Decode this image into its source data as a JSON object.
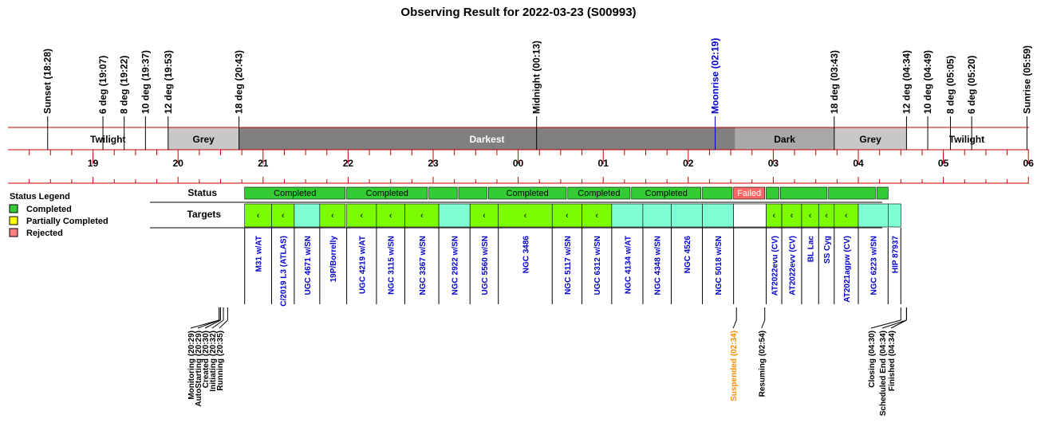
{
  "chart_data": {
    "type": "timeline",
    "title": "Observing Result for 2022-03-23 (S00993)",
    "x_range": [
      "18:00",
      "06:05"
    ],
    "hour_ticks": [
      "19",
      "20",
      "21",
      "22",
      "23",
      "00",
      "01",
      "02",
      "03",
      "04",
      "05",
      "06"
    ],
    "sky_events": [
      {
        "label": "Sunset (18:28)",
        "time": "18:28",
        "color": "#000000"
      },
      {
        "label": "6 deg (19:07)",
        "time": "19:07",
        "color": "#000000"
      },
      {
        "label": "8 deg (19:22)",
        "time": "19:22",
        "color": "#000000"
      },
      {
        "label": "10 deg (19:37)",
        "time": "19:37",
        "color": "#000000"
      },
      {
        "label": "12 deg (19:53)",
        "time": "19:53",
        "color": "#000000"
      },
      {
        "label": "18 deg (20:43)",
        "time": "20:43",
        "color": "#000000"
      },
      {
        "label": "Midnight (00:13)",
        "time": "00:13",
        "color": "#000000"
      },
      {
        "label": "Moonrise (02:19)",
        "time": "02:19",
        "color": "#0000cc"
      },
      {
        "label": "18 deg (03:43)",
        "time": "03:43",
        "color": "#000000"
      },
      {
        "label": "12 deg (04:34)",
        "time": "04:34",
        "color": "#000000"
      },
      {
        "label": "10 deg (04:49)",
        "time": "04:49",
        "color": "#000000"
      },
      {
        "label": "8 deg (05:05)",
        "time": "05:05",
        "color": "#000000"
      },
      {
        "label": "6 deg (05:20)",
        "time": "05:20",
        "color": "#000000"
      },
      {
        "label": "Sunrise (05:59)",
        "time": "05:59",
        "color": "#000000"
      }
    ],
    "sky_bands": [
      {
        "label": "Twilight",
        "start": "18:28",
        "end": "19:53",
        "color": "#ffffff",
        "text_color": "#000000"
      },
      {
        "label": "Grey",
        "start": "19:53",
        "end": "20:43",
        "color": "#c8c8c8",
        "text_color": "#000000"
      },
      {
        "label": "Darkest",
        "start": "20:43",
        "end": "02:33",
        "color": "#808080",
        "text_color": "#ffffff"
      },
      {
        "label": "Dark",
        "start": "02:33",
        "end": "03:43",
        "color": "#a9a9a9",
        "text_color": "#000000"
      },
      {
        "label": "Grey",
        "start": "03:43",
        "end": "04:34",
        "color": "#c8c8c8",
        "text_color": "#000000"
      },
      {
        "label": "Twilight",
        "start": "04:34",
        "end": "05:59",
        "color": "#ffffff",
        "text_color": "#000000"
      }
    ],
    "status_blocks": [
      {
        "start": "20:47",
        "end": "21:58",
        "status": "Completed",
        "label": "Completed"
      },
      {
        "start": "21:59",
        "end": "22:56",
        "status": "Completed",
        "label": "Completed"
      },
      {
        "start": "22:57",
        "end": "23:17",
        "status": "Completed",
        "label": ""
      },
      {
        "start": "23:18",
        "end": "23:38",
        "status": "Completed",
        "label": ""
      },
      {
        "start": "23:39",
        "end": "00:34",
        "status": "Completed",
        "label": "Completed"
      },
      {
        "start": "00:35",
        "end": "01:19",
        "status": "Completed",
        "label": "Completed"
      },
      {
        "start": "01:20",
        "end": "02:09",
        "status": "Completed",
        "label": "Completed"
      },
      {
        "start": "02:10",
        "end": "02:31",
        "status": "Completed",
        "label": ""
      },
      {
        "start": "02:32",
        "end": "02:54",
        "status": "Failed",
        "label": "Failed"
      },
      {
        "start": "02:55",
        "end": "03:04",
        "status": "Completed",
        "label": ""
      },
      {
        "start": "03:05",
        "end": "03:38",
        "status": "Completed",
        "label": ""
      },
      {
        "start": "03:39",
        "end": "04:12",
        "status": "Completed",
        "label": ""
      },
      {
        "start": "04:13",
        "end": "04:21",
        "status": "Completed",
        "label": ""
      }
    ],
    "targets": [
      {
        "name": "M31 w/AT",
        "start": "20:47",
        "end": "21:06",
        "color": "#7cfc00",
        "mark": "‹"
      },
      {
        "name": "C/2019 L3 (ATLAS)",
        "start": "21:06",
        "end": "21:22",
        "color": "#7cfc00",
        "mark": "‹"
      },
      {
        "name": "UGC 4671 w/SN",
        "start": "21:22",
        "end": "21:40",
        "color": "#7fffd4",
        "mark": ""
      },
      {
        "name": "19P/Borrelly",
        "start": "21:40",
        "end": "21:58",
        "color": "#7cfc00",
        "mark": "‹"
      },
      {
        "name": "UGC 4219 w/AT",
        "start": "21:59",
        "end": "22:20",
        "color": "#7cfc00",
        "mark": "‹"
      },
      {
        "name": "NGC 3115 w/SN",
        "start": "22:20",
        "end": "22:40",
        "color": "#7cfc00",
        "mark": "‹"
      },
      {
        "name": "NGC 3367 w/SN",
        "start": "22:40",
        "end": "23:04",
        "color": "#7cfc00",
        "mark": "‹"
      },
      {
        "name": "NGC 2922 w/SN",
        "start": "23:04",
        "end": "23:26",
        "color": "#7fffd4",
        "mark": ""
      },
      {
        "name": "UGC 5560 w/SN",
        "start": "23:26",
        "end": "23:46",
        "color": "#7cfc00",
        "mark": "‹"
      },
      {
        "name": "NGC 3486",
        "start": "23:46",
        "end": "00:24",
        "color": "#7cfc00",
        "mark": "‹"
      },
      {
        "name": "NGC 5117 w/SN",
        "start": "00:24",
        "end": "00:45",
        "color": "#7cfc00",
        "mark": "‹"
      },
      {
        "name": "UGC 6312 w/SN",
        "start": "00:45",
        "end": "01:06",
        "color": "#7cfc00",
        "mark": "‹"
      },
      {
        "name": "NGC 4134 w/AT",
        "start": "01:06",
        "end": "01:28",
        "color": "#7fffd4",
        "mark": ""
      },
      {
        "name": "NGC 4348 w/SN",
        "start": "01:28",
        "end": "01:48",
        "color": "#7fffd4",
        "mark": ""
      },
      {
        "name": "NGC 4526",
        "start": "01:48",
        "end": "02:10",
        "color": "#7fffd4",
        "mark": ""
      },
      {
        "name": "NGC 5018 w/SN",
        "start": "02:10",
        "end": "02:32",
        "color": "#7fffd4",
        "mark": ""
      },
      {
        "name": "",
        "start": "02:32",
        "end": "02:55",
        "color": "#ffffff",
        "mark": ""
      },
      {
        "name": "AT2022evu (CV)",
        "start": "02:55",
        "end": "03:06",
        "color": "#7cfc00",
        "mark": "‹"
      },
      {
        "name": "AT2022evv (CV)",
        "start": "03:06",
        "end": "03:20",
        "color": "#7cfc00",
        "mark": "‹"
      },
      {
        "name": "BL Lac",
        "start": "03:20",
        "end": "03:32",
        "color": "#7cfc00",
        "mark": "‹"
      },
      {
        "name": "SS Cyg",
        "start": "03:32",
        "end": "03:43",
        "color": "#7cfc00",
        "mark": "‹"
      },
      {
        "name": "AT2021agpw (CV)",
        "start": "03:43",
        "end": "04:00",
        "color": "#7cfc00",
        "mark": "‹"
      },
      {
        "name": "NGC 6223 w/SN",
        "start": "04:00",
        "end": "04:21",
        "color": "#7fffd4",
        "mark": ""
      },
      {
        "name": "HIP 87937",
        "start": "04:21",
        "end": "04:30",
        "color": "#7fffd4",
        "mark": ""
      }
    ],
    "log_events": [
      {
        "label": "Monitoring (20:29)",
        "time": "20:29",
        "color": "#000000"
      },
      {
        "label": "AutoStarting (20:29)",
        "time": "20:29",
        "color": "#000000"
      },
      {
        "label": "Created (20:30)",
        "time": "20:30",
        "color": "#000000"
      },
      {
        "label": "Initiating (20:32)",
        "time": "20:32",
        "color": "#000000"
      },
      {
        "label": "Running (20:35)",
        "time": "20:35",
        "color": "#000000"
      },
      {
        "label": "Suspended (02:34)",
        "time": "02:34",
        "color": "#ff8c00"
      },
      {
        "label": "Resuming (02:54)",
        "time": "02:54",
        "color": "#000000"
      },
      {
        "label": "Closing (04:30)",
        "time": "04:30",
        "color": "#000000"
      },
      {
        "label": "Scheduled End (04:34)",
        "time": "04:34",
        "color": "#000000"
      },
      {
        "label": "Finished (04:34)",
        "time": "04:34",
        "color": "#000000"
      }
    ],
    "legend": {
      "title": "Status Legend",
      "items": [
        {
          "label": "Completed",
          "color": "#33cc33"
        },
        {
          "label": "Partially Completed",
          "color": "#ffff00"
        },
        {
          "label": "Rejected",
          "color": "#ff8080"
        }
      ]
    },
    "row_labels": {
      "status": "Status",
      "targets": "Targets"
    }
  },
  "colors": {
    "axis_red": "#cc0000",
    "status_completed": "#33cc33",
    "status_failed": "#ff6666",
    "target_text": "#0000cc"
  }
}
